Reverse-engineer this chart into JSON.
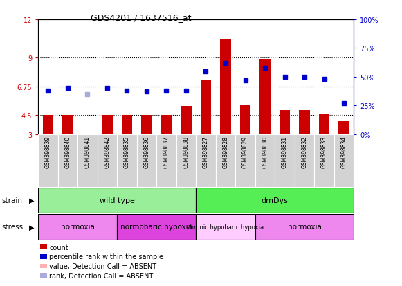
{
  "title": "GDS4201 / 1637516_at",
  "samples": [
    "GSM398839",
    "GSM398840",
    "GSM398841",
    "GSM398842",
    "GSM398835",
    "GSM398836",
    "GSM398837",
    "GSM398838",
    "GSM398827",
    "GSM398828",
    "GSM398829",
    "GSM398830",
    "GSM398831",
    "GSM398832",
    "GSM398833",
    "GSM398834"
  ],
  "bar_values": [
    4.5,
    4.5,
    3.0,
    4.5,
    4.5,
    4.5,
    4.5,
    5.2,
    7.2,
    10.5,
    5.3,
    8.9,
    4.9,
    4.9,
    4.6,
    4.0
  ],
  "bar_absent": [
    false,
    false,
    true,
    false,
    false,
    false,
    false,
    false,
    false,
    false,
    false,
    false,
    false,
    false,
    false,
    false
  ],
  "rank_values": [
    38,
    40,
    35,
    40,
    38,
    37,
    38,
    38,
    55,
    62,
    47,
    58,
    50,
    50,
    48,
    27
  ],
  "rank_absent": [
    false,
    false,
    true,
    false,
    false,
    false,
    false,
    false,
    false,
    false,
    false,
    false,
    false,
    false,
    false,
    false
  ],
  "ylim_left": [
    3,
    12
  ],
  "ylim_right": [
    0,
    100
  ],
  "yticks_left": [
    3,
    4.5,
    6.75,
    9,
    12
  ],
  "yticks_right": [
    0,
    25,
    50,
    75,
    100
  ],
  "ytick_labels_left": [
    "3",
    "4.5",
    "6.75",
    "9",
    "12"
  ],
  "ytick_labels_right": [
    "0%",
    "25%",
    "50%",
    "75%",
    "100%"
  ],
  "bar_color": "#cc0000",
  "bar_absent_color": "#ffb0b0",
  "rank_color": "#0000cc",
  "rank_absent_color": "#aaaadd",
  "strain_groups": [
    {
      "label": "wild type",
      "start": 0,
      "end": 8,
      "color": "#99ee99"
    },
    {
      "label": "dmDys",
      "start": 8,
      "end": 16,
      "color": "#55ee55"
    }
  ],
  "stress_groups": [
    {
      "label": "normoxia",
      "start": 0,
      "end": 4,
      "color": "#ee88ee"
    },
    {
      "label": "normobaric hypoxia",
      "start": 4,
      "end": 8,
      "color": "#dd44dd"
    },
    {
      "label": "chronic hypobaric hypoxia",
      "start": 8,
      "end": 11,
      "color": "#ffccff"
    },
    {
      "label": "normoxia",
      "start": 11,
      "end": 16,
      "color": "#ee88ee"
    }
  ],
  "legend_items": [
    {
      "label": "count",
      "color": "#cc0000"
    },
    {
      "label": "percentile rank within the sample",
      "color": "#0000cc"
    },
    {
      "label": "value, Detection Call = ABSENT",
      "color": "#ffb0b0"
    },
    {
      "label": "rank, Detection Call = ABSENT",
      "color": "#aaaadd"
    }
  ],
  "background_color": "#ffffff"
}
